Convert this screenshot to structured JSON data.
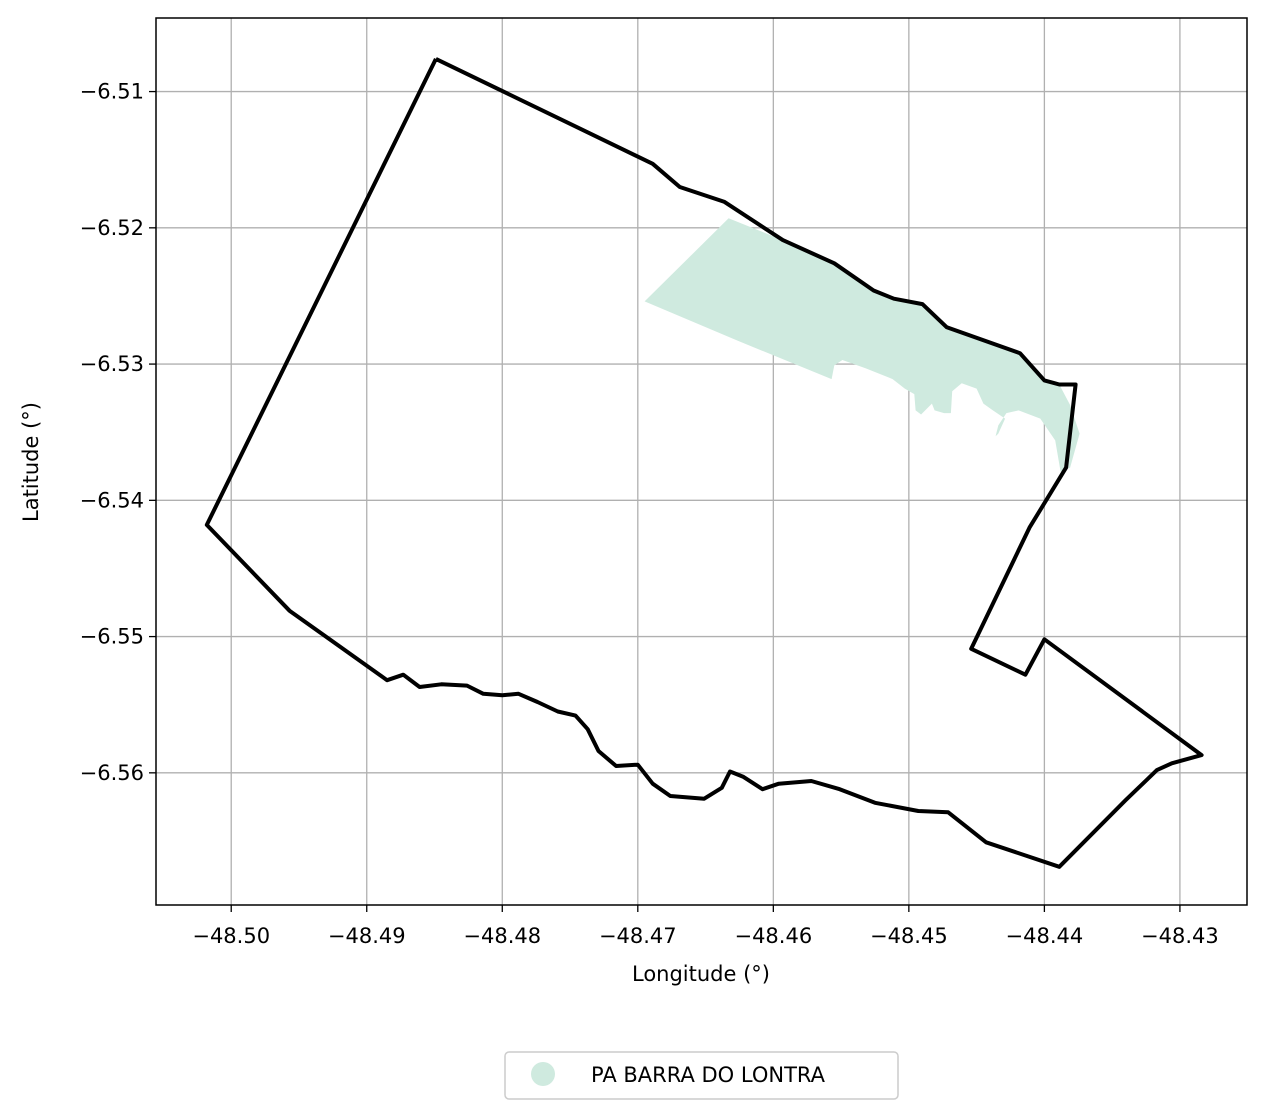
{
  "chart_data": {
    "type": "map",
    "xlabel": "Longitude (°)",
    "ylabel": "Latitude (°)",
    "xlim": [
      -48.50555,
      -48.42505
    ],
    "ylim": [
      -6.5697,
      -6.5046
    ],
    "xticks": [
      -48.5,
      -48.49,
      -48.48,
      -48.47,
      -48.46,
      -48.45,
      -48.44,
      -48.43
    ],
    "xtick_labels": [
      "−48.50",
      "−48.49",
      "−48.48",
      "−48.47",
      "−48.46",
      "−48.45",
      "−48.44",
      "−48.43"
    ],
    "yticks": [
      -6.51,
      -6.52,
      -6.53,
      -6.54,
      -6.55,
      -6.56
    ],
    "ytick_labels": [
      "−6.51",
      "−6.52",
      "−6.53",
      "−6.54",
      "−6.55",
      "−6.56"
    ],
    "grid": true,
    "legend_position": "bottom-center",
    "legend_entries": [
      {
        "label": "PA BARRA DO LONTRA",
        "color": "#cfeadf",
        "marker": "circle"
      }
    ],
    "boundary": {
      "color": "#000000",
      "coordinates": [
        [
          -48.4849,
          -6.5076
        ],
        [
          -48.4689,
          -6.5153
        ],
        [
          -48.4669,
          -6.517
        ],
        [
          -48.4636,
          -6.5181
        ],
        [
          -48.4593,
          -6.5209
        ],
        [
          -48.4555,
          -6.5226
        ],
        [
          -48.4526,
          -6.5246
        ],
        [
          -48.4511,
          -6.5252
        ],
        [
          -48.449,
          -6.5256
        ],
        [
          -48.4472,
          -6.5273
        ],
        [
          -48.4418,
          -6.5292
        ],
        [
          -48.44,
          -6.5312
        ],
        [
          -48.4389,
          -6.5315
        ],
        [
          -48.4377,
          -6.5315
        ],
        [
          -48.4384,
          -6.5376
        ],
        [
          -48.4411,
          -6.542
        ],
        [
          -48.4454,
          -6.5509
        ],
        [
          -48.4414,
          -6.5528
        ],
        [
          -48.44,
          -6.5502
        ],
        [
          -48.4284,
          -6.5587
        ],
        [
          -48.4306,
          -6.5593
        ],
        [
          -48.4317,
          -6.5598
        ],
        [
          -48.434,
          -6.562
        ],
        [
          -48.4389,
          -6.5669
        ],
        [
          -48.4443,
          -6.5651
        ],
        [
          -48.4471,
          -6.5629
        ],
        [
          -48.4493,
          -6.5628
        ],
        [
          -48.4525,
          -6.5622
        ],
        [
          -48.4551,
          -6.5612
        ],
        [
          -48.4572,
          -6.5606
        ],
        [
          -48.4596,
          -6.5608
        ],
        [
          -48.4608,
          -6.5612
        ],
        [
          -48.4622,
          -6.5603
        ],
        [
          -48.4632,
          -6.5599
        ],
        [
          -48.4638,
          -6.5611
        ],
        [
          -48.4651,
          -6.5619
        ],
        [
          -48.4676,
          -6.5617
        ],
        [
          -48.4689,
          -6.5608
        ],
        [
          -48.47,
          -6.5594
        ],
        [
          -48.4716,
          -6.5595
        ],
        [
          -48.4729,
          -6.5584
        ],
        [
          -48.4737,
          -6.5568
        ],
        [
          -48.4746,
          -6.5558
        ],
        [
          -48.4759,
          -6.5555
        ],
        [
          -48.4774,
          -6.5548
        ],
        [
          -48.4788,
          -6.5542
        ],
        [
          -48.48,
          -6.5543
        ],
        [
          -48.4814,
          -6.5542
        ],
        [
          -48.4826,
          -6.5536
        ],
        [
          -48.4845,
          -6.5535
        ],
        [
          -48.4861,
          -6.5537
        ],
        [
          -48.4873,
          -6.5528
        ],
        [
          -48.4885,
          -6.5532
        ],
        [
          -48.4957,
          -6.5481
        ],
        [
          -48.5018,
          -6.5418
        ],
        [
          -48.4849,
          -6.5076
        ]
      ]
    },
    "settlement_area": {
      "name": "PA BARRA DO LONTRA",
      "color": "#cfeadf",
      "coordinates": [
        [
          -48.4695,
          -6.5254
        ],
        [
          -48.4633,
          -6.5193
        ],
        [
          -48.4593,
          -6.5209
        ],
        [
          -48.4555,
          -6.5226
        ],
        [
          -48.4526,
          -6.5246
        ],
        [
          -48.4511,
          -6.5252
        ],
        [
          -48.449,
          -6.5256
        ],
        [
          -48.4472,
          -6.5273
        ],
        [
          -48.4418,
          -6.5292
        ],
        [
          -48.44,
          -6.5312
        ],
        [
          -48.4389,
          -6.5315
        ],
        [
          -48.4381,
          -6.533
        ],
        [
          -48.4374,
          -6.5351
        ],
        [
          -48.4381,
          -6.5376
        ],
        [
          -48.4388,
          -6.5379
        ],
        [
          -48.4392,
          -6.5356
        ],
        [
          -48.4403,
          -6.534
        ],
        [
          -48.4419,
          -6.5334
        ],
        [
          -48.4428,
          -6.5336
        ],
        [
          -48.4434,
          -6.5345
        ],
        [
          -48.4436,
          -6.5353
        ],
        [
          -48.4434,
          -6.5351
        ],
        [
          -48.4429,
          -6.534
        ],
        [
          -48.4438,
          -6.5334
        ],
        [
          -48.4445,
          -6.5329
        ],
        [
          -48.445,
          -6.5318
        ],
        [
          -48.4461,
          -6.5314
        ],
        [
          -48.4468,
          -6.532
        ],
        [
          -48.4469,
          -6.5336
        ],
        [
          -48.4474,
          -6.5336
        ],
        [
          -48.4481,
          -6.5334
        ],
        [
          -48.4483,
          -6.5329
        ],
        [
          -48.4491,
          -6.5337
        ],
        [
          -48.4495,
          -6.5334
        ],
        [
          -48.4496,
          -6.5322
        ],
        [
          -48.4503,
          -6.5318
        ],
        [
          -48.4512,
          -6.5311
        ],
        [
          -48.4532,
          -6.5303
        ],
        [
          -48.4549,
          -6.5297
        ],
        [
          -48.4555,
          -6.5301
        ],
        [
          -48.4557,
          -6.5311
        ],
        [
          -48.4626,
          -6.5283
        ],
        [
          -48.4695,
          -6.5254
        ]
      ]
    }
  }
}
